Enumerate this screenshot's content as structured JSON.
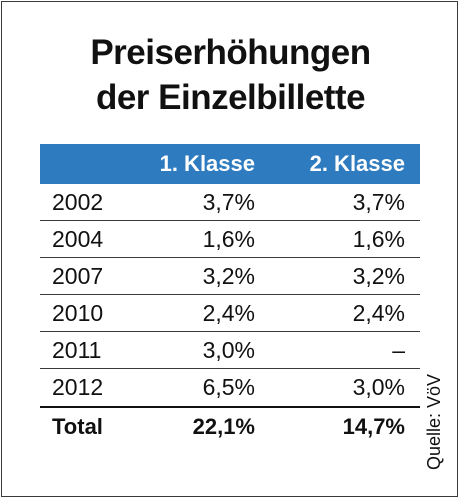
{
  "chart_data": {
    "type": "table",
    "title": "Preiserhöhungen der Einzelbillette",
    "title_lines": [
      "Preiserhöhungen",
      "der Einzelbillette"
    ],
    "columns": [
      "",
      "1. Klasse",
      "2. Klasse"
    ],
    "rows": [
      {
        "year": "2002",
        "k1": "3,7%",
        "k2": "3,7%"
      },
      {
        "year": "2004",
        "k1": "1,6%",
        "k2": "1,6%"
      },
      {
        "year": "2007",
        "k1": "3,2%",
        "k2": "3,2%"
      },
      {
        "year": "2010",
        "k1": "2,4%",
        "k2": "2,4%"
      },
      {
        "year": "2011",
        "k1": "3,0%",
        "k2": "–"
      },
      {
        "year": "2012",
        "k1": "6,5%",
        "k2": "3,0%"
      }
    ],
    "values": {
      "k1": [
        3.7,
        1.6,
        3.2,
        2.4,
        3.0,
        6.5
      ],
      "k2": [
        3.7,
        1.6,
        3.2,
        2.4,
        null,
        3.0
      ]
    },
    "total": {
      "label": "Total",
      "k1": "22,1%",
      "k2": "14,7%"
    },
    "source": "Quelle: VöV",
    "header_color": "#2e7bbf"
  }
}
